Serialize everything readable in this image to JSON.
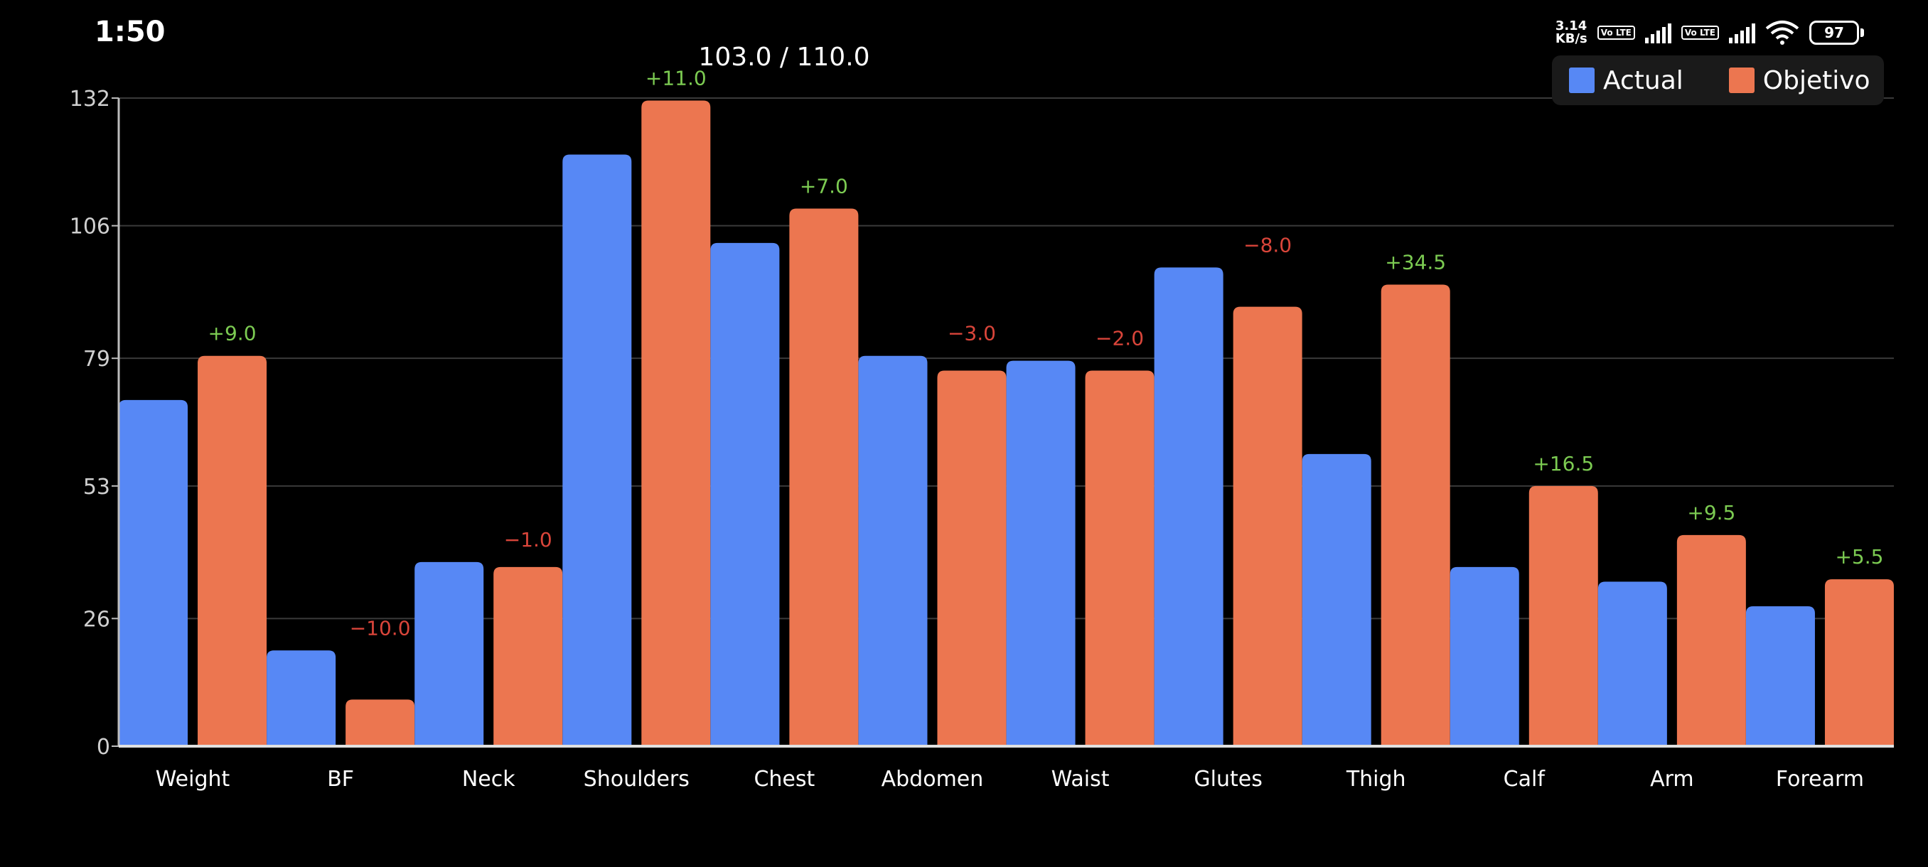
{
  "status_bar": {
    "time": "1:50",
    "net_speed_value": "3.14",
    "net_speed_unit": "KB/s",
    "volte_label_1": "Vo LTE",
    "volte_label_2": "Vo LTE",
    "battery": "97",
    "icons": [
      "volte-icon",
      "signal-icon",
      "volte-icon",
      "signal-icon",
      "wifi-icon",
      "battery-icon"
    ]
  },
  "chart_data": {
    "type": "bar",
    "title": "103.0 / 110.0",
    "categories": [
      "Weight",
      "BF",
      "Neck",
      "Shoulders",
      "Chest",
      "Abdomen",
      "Waist",
      "Glutes",
      "Thigh",
      "Calf",
      "Arm",
      "Forearm"
    ],
    "series": [
      {
        "name": "Actual",
        "color": "#5788F5",
        "values": [
          70.5,
          19.5,
          37.5,
          120.5,
          102.5,
          79.5,
          78.5,
          97.5,
          59.5,
          36.5,
          33.5,
          28.5
        ]
      },
      {
        "name": "Objetivo",
        "color": "#EC7650",
        "values": [
          79.5,
          9.5,
          36.5,
          131.5,
          109.5,
          76.5,
          76.5,
          89.5,
          94,
          53,
          43,
          34
        ]
      }
    ],
    "difference_labels": [
      "+9.0",
      "−10.0",
      "−1.0",
      "+11.0",
      "+7.0",
      "−3.0",
      "−2.0",
      "−8.0",
      "+34.5",
      "+16.5",
      "+9.5",
      "+5.5"
    ],
    "difference_positive": [
      true,
      false,
      false,
      true,
      true,
      false,
      false,
      false,
      true,
      true,
      true,
      true
    ],
    "positive_color": "#7CCB52",
    "negative_color": "#D9453A",
    "yticks": [
      0,
      26,
      53,
      79,
      106,
      132
    ],
    "ylim": [
      0,
      132
    ],
    "grid": true,
    "legend_position": "top-right",
    "xlabel": "",
    "ylabel": ""
  }
}
